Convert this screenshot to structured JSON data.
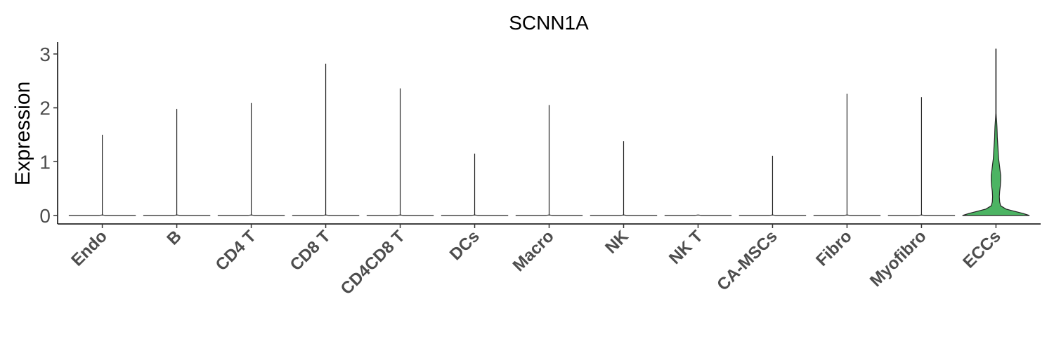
{
  "chart_data": {
    "type": "violin",
    "title": "SCNN1A",
    "xlabel": "",
    "ylabel": "Expression",
    "ylim": [
      -0.15,
      3.25
    ],
    "yticks": [
      0,
      1,
      2,
      3
    ],
    "grid": false,
    "legend": "none",
    "categories": [
      "Endo",
      "B",
      "CD4 T",
      "CD8 T",
      "CD4CD8 T",
      "DCs",
      "Macro",
      "NK",
      "NK T",
      "CA-MSCs",
      "Fibro",
      "Myofibro",
      "ECCs"
    ],
    "max_values": [
      1.5,
      1.98,
      2.09,
      2.82,
      2.36,
      1.15,
      2.05,
      1.38,
      0.0,
      1.11,
      2.26,
      2.2,
      3.09
    ],
    "highlight": {
      "category": "ECCs",
      "color": "#4cb463",
      "density_profile": [
        [
          0.0,
          1.0
        ],
        [
          0.04,
          0.8
        ],
        [
          0.08,
          0.55
        ],
        [
          0.12,
          0.3
        ],
        [
          0.18,
          0.14
        ],
        [
          0.25,
          0.11
        ],
        [
          0.35,
          0.1
        ],
        [
          0.45,
          0.11
        ],
        [
          0.55,
          0.13
        ],
        [
          0.65,
          0.14
        ],
        [
          0.75,
          0.14
        ],
        [
          0.85,
          0.12
        ],
        [
          0.95,
          0.1
        ],
        [
          1.05,
          0.08
        ],
        [
          1.15,
          0.07
        ],
        [
          1.25,
          0.06
        ],
        [
          1.35,
          0.05
        ],
        [
          1.45,
          0.04
        ],
        [
          1.55,
          0.035
        ],
        [
          1.65,
          0.03
        ],
        [
          1.75,
          0.02
        ],
        [
          1.82,
          0.01
        ],
        [
          1.9,
          0.005
        ],
        [
          3.09,
          0.005
        ]
      ]
    }
  }
}
